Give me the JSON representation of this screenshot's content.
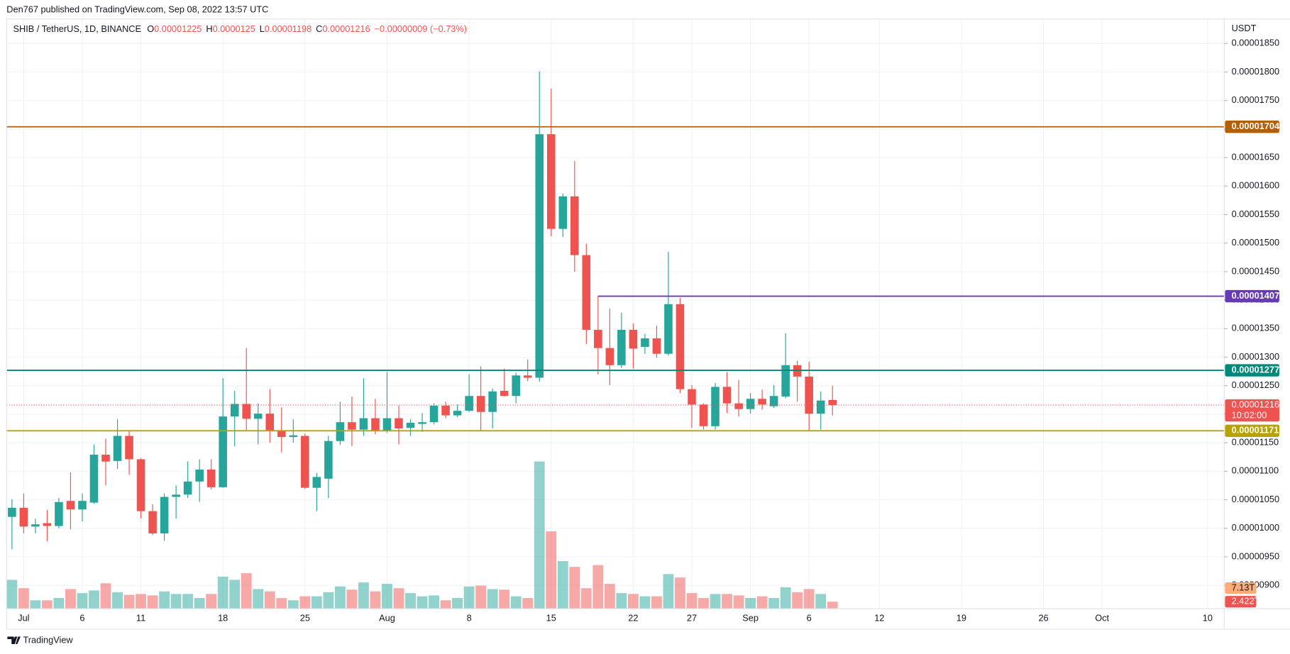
{
  "header": {
    "text": "Den767 published on TradingView.com, Sep 08, 2022 13:57 UTC"
  },
  "footer": {
    "brand": "TradingView"
  },
  "chart_data": {
    "type": "candlestick",
    "symbol": "SHIB / TetherUS, 1D, BINANCE",
    "ohlc_letters": [
      "O",
      "H",
      "L",
      "C"
    ],
    "change": "−0.00000009 (−0.73%)",
    "currency": "USDT",
    "countdown": "10:02:00",
    "up_color": "#26a69a",
    "down_color": "#ef5350",
    "grid": true,
    "x": [
      "2022-06-30",
      "2022-07-01",
      "2022-07-02",
      "2022-07-03",
      "2022-07-04",
      "2022-07-05",
      "2022-07-06",
      "2022-07-07",
      "2022-07-08",
      "2022-07-09",
      "2022-07-10",
      "2022-07-11",
      "2022-07-12",
      "2022-07-13",
      "2022-07-14",
      "2022-07-15",
      "2022-07-16",
      "2022-07-17",
      "2022-07-18",
      "2022-07-19",
      "2022-07-20",
      "2022-07-21",
      "2022-07-22",
      "2022-07-23",
      "2022-07-24",
      "2022-07-25",
      "2022-07-26",
      "2022-07-27",
      "2022-07-28",
      "2022-07-29",
      "2022-07-30",
      "2022-07-31",
      "2022-08-01",
      "2022-08-02",
      "2022-08-03",
      "2022-08-04",
      "2022-08-05",
      "2022-08-06",
      "2022-08-07",
      "2022-08-08",
      "2022-08-09",
      "2022-08-10",
      "2022-08-11",
      "2022-08-12",
      "2022-08-13",
      "2022-08-14",
      "2022-08-15",
      "2022-08-16",
      "2022-08-17",
      "2022-08-18",
      "2022-08-19",
      "2022-08-20",
      "2022-08-21",
      "2022-08-22",
      "2022-08-23",
      "2022-08-24",
      "2022-08-25",
      "2022-08-26",
      "2022-08-27",
      "2022-08-28",
      "2022-08-29",
      "2022-08-30",
      "2022-08-31",
      "2022-09-01",
      "2022-09-02",
      "2022-09-03",
      "2022-09-04",
      "2022-09-05",
      "2022-09-06",
      "2022-09-07",
      "2022-09-08"
    ],
    "open": [
      1.02e-05,
      1.036e-05,
      1.003e-05,
      1.009e-05,
      1.004e-05,
      1.048e-05,
      1.033e-05,
      1.045e-05,
      1.129e-05,
      1.118e-05,
      1.162e-05,
      1.121e-05,
      1.03e-05,
      9.91e-06,
      1.055e-05,
      1.059e-05,
      1.082e-05,
      1.103e-05,
      1.072e-05,
      1.196e-05,
      1.218e-05,
      1.192e-05,
      1.201e-05,
      1.172e-05,
      1.16e-05,
      1.162e-05,
      1.071e-05,
      1.087e-05,
      1.153e-05,
      1.186e-05,
      1.173e-05,
      1.193e-05,
      1.172e-05,
      1.193e-05,
      1.176e-05,
      1.183e-05,
      1.186e-05,
      1.215e-05,
      1.198e-05,
      1.206e-05,
      1.232e-05,
      1.204e-05,
      1.241e-05,
      1.232e-05,
      1.268e-05,
      1.264e-05,
      1.691e-05,
      1.525e-05,
      1.582e-05,
      1.479e-05,
      1.348e-05,
      1.316e-05,
      1.286e-05,
      1.348e-05,
      1.318e-05,
      1.333e-05,
      1.306e-05,
      1.393e-05,
      1.244e-05,
      1.217e-05,
      1.179e-05,
      1.248e-05,
      1.219e-05,
      1.209e-05,
      1.227e-05,
      1.214e-05,
      1.231e-05,
      1.286e-05,
      1.266e-05,
      1.201e-05,
      1.225e-05
    ],
    "high": [
      1.051e-05,
      1.061e-05,
      1.017e-05,
      1.032e-05,
      1.053e-05,
      1.098e-05,
      1.061e-05,
      1.147e-05,
      1.157e-05,
      1.191e-05,
      1.17e-05,
      1.123e-05,
      1.042e-05,
      1.061e-05,
      1.075e-05,
      1.117e-05,
      1.121e-05,
      1.121e-05,
      1.263e-05,
      1.241e-05,
      1.316e-05,
      1.219e-05,
      1.244e-05,
      1.212e-05,
      1.191e-05,
      1.166e-05,
      1.097e-05,
      1.162e-05,
      1.222e-05,
      1.231e-05,
      1.263e-05,
      1.227e-05,
      1.274e-05,
      1.215e-05,
      1.191e-05,
      1.202e-05,
      1.219e-05,
      1.222e-05,
      1.217e-05,
      1.27e-05,
      1.284e-05,
      1.245e-05,
      1.28e-05,
      1.273e-05,
      1.296e-05,
      1.801e-05,
      1.771e-05,
      1.587e-05,
      1.644e-05,
      1.499e-05,
      1.407e-05,
      1.385e-05,
      1.378e-05,
      1.359e-05,
      1.341e-05,
      1.355e-05,
      1.485e-05,
      1.404e-05,
      1.251e-05,
      1.219e-05,
      1.255e-05,
      1.274e-05,
      1.26e-05,
      1.237e-05,
      1.243e-05,
      1.251e-05,
      1.342e-05,
      1.294e-05,
      1.292e-05,
      1.24e-05,
      1.25e-05
    ],
    "low": [
      9.63e-06,
      9.91e-06,
      9.91e-06,
      9.77e-06,
      1e-05,
      9.98e-06,
      1.012e-05,
      1.043e-05,
      1.075e-05,
      1.104e-05,
      1.094e-05,
      1.017e-05,
      9.88e-06,
      9.78e-06,
      1.017e-05,
      1.053e-05,
      1.046e-05,
      1.068e-05,
      1.071e-05,
      1.144e-05,
      1.17e-05,
      1.147e-05,
      1.15e-05,
      1.133e-05,
      1.15e-05,
      1.069e-05,
      1.03e-05,
      1.053e-05,
      1.146e-05,
      1.144e-05,
      1.162e-05,
      1.165e-05,
      1.167e-05,
      1.147e-05,
      1.162e-05,
      1.169e-05,
      1.182e-05,
      1.193e-05,
      1.195e-05,
      1.204e-05,
      1.172e-05,
      1.175e-05,
      1.231e-05,
      1.219e-05,
      1.258e-05,
      1.257e-05,
      1.512e-05,
      1.511e-05,
      1.45e-05,
      1.323e-05,
      1.27e-05,
      1.251e-05,
      1.281e-05,
      1.28e-05,
      1.306e-05,
      1.299e-05,
      1.303e-05,
      1.237e-05,
      1.176e-05,
      1.173e-05,
      1.173e-05,
      1.202e-05,
      1.196e-05,
      1.201e-05,
      1.208e-05,
      1.211e-05,
      1.228e-05,
      1.222e-05,
      1.172e-05,
      1.173e-05,
      1.198e-05
    ],
    "close": [
      1.036e-05,
      1.003e-05,
      1.007e-05,
      1.004e-05,
      1.046e-05,
      1.033e-05,
      1.048e-05,
      1.129e-05,
      1.117e-05,
      1.162e-05,
      1.121e-05,
      1.03e-05,
      9.91e-06,
      1.055e-05,
      1.059e-05,
      1.082e-05,
      1.103e-05,
      1.072e-05,
      1.196e-05,
      1.218e-05,
      1.192e-05,
      1.201e-05,
      1.172e-05,
      1.16e-05,
      1.163e-05,
      1.071e-05,
      1.09e-05,
      1.153e-05,
      1.186e-05,
      1.173e-05,
      1.193e-05,
      1.172e-05,
      1.193e-05,
      1.175e-05,
      1.185e-05,
      1.186e-05,
      1.215e-05,
      1.198e-05,
      1.206e-05,
      1.232e-05,
      1.204e-05,
      1.24e-05,
      1.232e-05,
      1.268e-05,
      1.264e-05,
      1.691e-05,
      1.525e-05,
      1.582e-05,
      1.479e-05,
      1.348e-05,
      1.316e-05,
      1.286e-05,
      1.348e-05,
      1.315e-05,
      1.333e-05,
      1.306e-05,
      1.393e-05,
      1.244e-05,
      1.217e-05,
      1.179e-05,
      1.248e-05,
      1.219e-05,
      1.209e-05,
      1.227e-05,
      1.217e-05,
      1.232e-05,
      1.286e-05,
      1.266e-05,
      1.201e-05,
      1.224e-05,
      1.216e-05
    ],
    "volume": [
      10.0,
      7.1,
      2.9,
      2.9,
      3.7,
      6.8,
      5.4,
      6.3,
      8.8,
      5.7,
      4.8,
      5.1,
      4.6,
      6.0,
      5.1,
      5.1,
      3.7,
      5.1,
      11.1,
      10.0,
      12.3,
      6.8,
      6.0,
      3.7,
      2.9,
      4.3,
      4.3,
      5.7,
      7.7,
      6.6,
      9.1,
      6.0,
      8.6,
      7.1,
      5.4,
      4.3,
      4.6,
      2.9,
      3.7,
      7.7,
      8.0,
      6.8,
      6.6,
      4.3,
      3.7,
      51.0,
      26.8,
      16.5,
      14.5,
      7.1,
      15.1,
      8.6,
      5.4,
      5.1,
      4.3,
      4.3,
      12.0,
      10.8,
      5.4,
      3.7,
      5.1,
      5.1,
      4.6,
      3.7,
      4.3,
      3.7,
      7.4,
      5.7,
      6.8,
      5.1,
      2.422
    ],
    "volume_last_label": "2.422T",
    "volume_ma": {
      "value": 7.13,
      "label": "7.13T",
      "color": "#ffab76"
    },
    "volume_lim": [
      0,
      57
    ],
    "xlim": [
      "2022-06-29T13:00Z",
      "2022-10-11T10:00Z"
    ],
    "xticks": [
      {
        "value": "2022-07-01",
        "label": "Jul"
      },
      {
        "value": "2022-07-06",
        "label": "6"
      },
      {
        "value": "2022-07-11",
        "label": "11"
      },
      {
        "value": "2022-07-18",
        "label": "18"
      },
      {
        "value": "2022-07-25",
        "label": "25"
      },
      {
        "value": "2022-08-01",
        "label": "Aug"
      },
      {
        "value": "2022-08-08",
        "label": "8"
      },
      {
        "value": "2022-08-15",
        "label": "15"
      },
      {
        "value": "2022-08-22",
        "label": "22"
      },
      {
        "value": "2022-08-27",
        "label": "27"
      },
      {
        "value": "2022-09-01",
        "label": "Sep"
      },
      {
        "value": "2022-09-06",
        "label": "6"
      },
      {
        "value": "2022-09-12",
        "label": "12"
      },
      {
        "value": "2022-09-19",
        "label": "19"
      },
      {
        "value": "2022-09-26",
        "label": "26"
      },
      {
        "value": "2022-10-01",
        "label": "Oct"
      },
      {
        "value": "2022-10-10",
        "label": "10"
      }
    ],
    "ylim": [
      8.59e-06,
      1.893e-05
    ],
    "yticks": [
      {
        "value": 9e-06,
        "label": "0.00000900"
      },
      {
        "value": 9.5e-06,
        "label": "0.00000950"
      },
      {
        "value": 1e-05,
        "label": "0.00001000"
      },
      {
        "value": 1.05e-05,
        "label": "0.00001050"
      },
      {
        "value": 1.1e-05,
        "label": "0.00001100"
      },
      {
        "value": 1.15e-05,
        "label": "0.00001150"
      },
      {
        "value": 1.2e-05,
        "label": "0.00001200"
      },
      {
        "value": 1.25e-05,
        "label": "0.00001250"
      },
      {
        "value": 1.3e-05,
        "label": "0.00001300"
      },
      {
        "value": 1.35e-05,
        "label": "0.00001350"
      },
      {
        "value": 1.4e-05,
        "label": "0.00001400"
      },
      {
        "value": 1.45e-05,
        "label": "0.00001450"
      },
      {
        "value": 1.5e-05,
        "label": "0.00001500"
      },
      {
        "value": 1.55e-05,
        "label": "0.00001550"
      },
      {
        "value": 1.6e-05,
        "label": "0.00001600"
      },
      {
        "value": 1.65e-05,
        "label": "0.00001650"
      },
      {
        "value": 1.7e-05,
        "label": "0.00001700"
      },
      {
        "value": 1.75e-05,
        "label": "0.00001750"
      },
      {
        "value": 1.8e-05,
        "label": "0.00001800"
      },
      {
        "value": 1.85e-05,
        "label": "0.00001850"
      }
    ],
    "levels": [
      {
        "value": 1.704e-05,
        "color": "#b45f06"
      },
      {
        "value": 1.407e-05,
        "color": "#673ab7",
        "from": "2022-08-19"
      },
      {
        "value": 1.277e-05,
        "color": "#00897b"
      },
      {
        "value": 1.171e-05,
        "color": "#b8a200"
      }
    ]
  }
}
